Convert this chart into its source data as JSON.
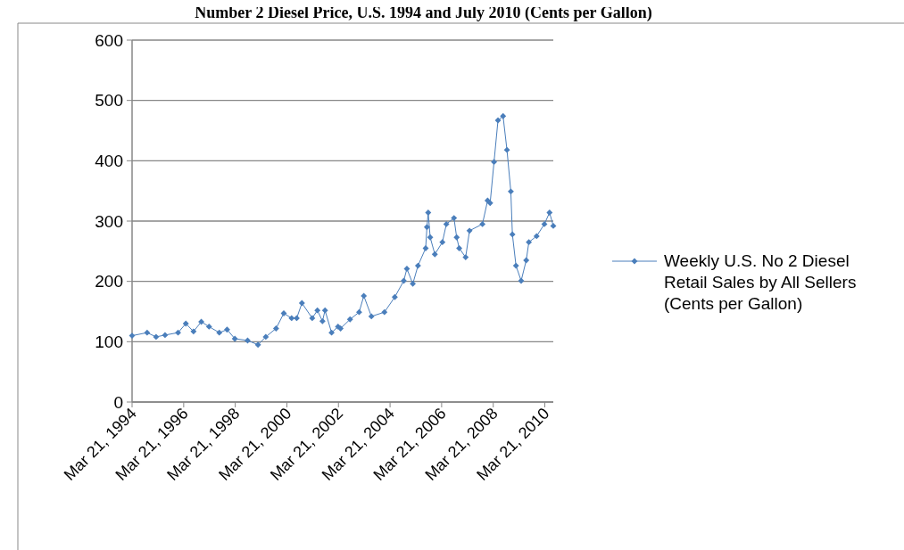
{
  "chart_data": {
    "type": "line",
    "title": "Number 2 Diesel Price, U.S. 1994 and July 2010 (Cents per Gallon)",
    "x": [
      "1994-03-21",
      "1994-10-20",
      "1995-02-24",
      "1995-07-01",
      "1996-01-01",
      "1996-04-20",
      "1996-08-07",
      "1996-11-25",
      "1997-03-15",
      "1997-08-07",
      "1997-11-25",
      "1998-03-15",
      "1998-09-12",
      "1999-02-06",
      "1999-05-27",
      "1999-10-20",
      "2000-02-06",
      "2000-05-27",
      "2000-08-07",
      "2000-10-20",
      "2001-03-15",
      "2001-05-27",
      "2001-08-07",
      "2001-09-12",
      "2001-12-14",
      "2002-03-15",
      "2002-04-20",
      "2002-09-01",
      "2003-01-08",
      "2003-03-15",
      "2003-07-01",
      "2004-01-01",
      "2004-05-27",
      "2004-10-01",
      "2004-11-14",
      "2005-02-06",
      "2005-04-20",
      "2005-08-07",
      "2005-08-25",
      "2005-09-12",
      "2005-10-10",
      "2005-12-15",
      "2006-04-01",
      "2006-05-27",
      "2006-09-12",
      "2006-10-20",
      "2006-11-25",
      "2007-02-24",
      "2007-04-20",
      "2007-10-20",
      "2008-01-01",
      "2008-02-06",
      "2008-04-01",
      "2008-05-27",
      "2008-08-07",
      "2008-10-01",
      "2008-11-25",
      "2008-12-17",
      "2009-02-06",
      "2009-04-20",
      "2009-07-01",
      "2009-08-07",
      "2009-11-25",
      "2010-03-15",
      "2010-05-27",
      "2010-07-19"
    ],
    "series": [
      {
        "name": "Weekly U.S. No 2 Diesel Retail Sales by All Sellers (Cents per Gallon)",
        "color": "#4a7ebb",
        "values": [
          110,
          115,
          108,
          111,
          115,
          130,
          117,
          133,
          125,
          115,
          120,
          105,
          102,
          95,
          108,
          122,
          147,
          139,
          139,
          164,
          139,
          152,
          134,
          152,
          115,
          125,
          122,
          137,
          149,
          176,
          142,
          149,
          174,
          201,
          221,
          196,
          226,
          255,
          290,
          314,
          273,
          245,
          265,
          295,
          305,
          273,
          255,
          240,
          284,
          295,
          334,
          330,
          398,
          467,
          474,
          418,
          349,
          278,
          226,
          201,
          235,
          265,
          275,
          295,
          314,
          292
        ]
      }
    ],
    "xlim": [
      "1994-03-21",
      "2010-07-19"
    ],
    "xticks": [
      {
        "value": "1994-03-21",
        "label": "Mar 21, 1994"
      },
      {
        "value": "1996-03-21",
        "label": "Mar 21, 1996"
      },
      {
        "value": "1998-03-21",
        "label": "Mar 21, 1998"
      },
      {
        "value": "2000-03-21",
        "label": "Mar 21, 2000"
      },
      {
        "value": "2002-03-21",
        "label": "Mar 21, 2002"
      },
      {
        "value": "2004-03-21",
        "label": "Mar 21, 2004"
      },
      {
        "value": "2006-03-21",
        "label": "Mar 21, 2006"
      },
      {
        "value": "2008-03-21",
        "label": "Mar 21, 2008"
      },
      {
        "value": "2010-03-21",
        "label": "Mar 21, 2010"
      }
    ],
    "ylim": [
      0,
      600
    ],
    "yticks": [
      0,
      100,
      200,
      300,
      400,
      500,
      600
    ],
    "grid": "y",
    "legend": "right",
    "marker": "diamond",
    "line_style": "solid"
  }
}
